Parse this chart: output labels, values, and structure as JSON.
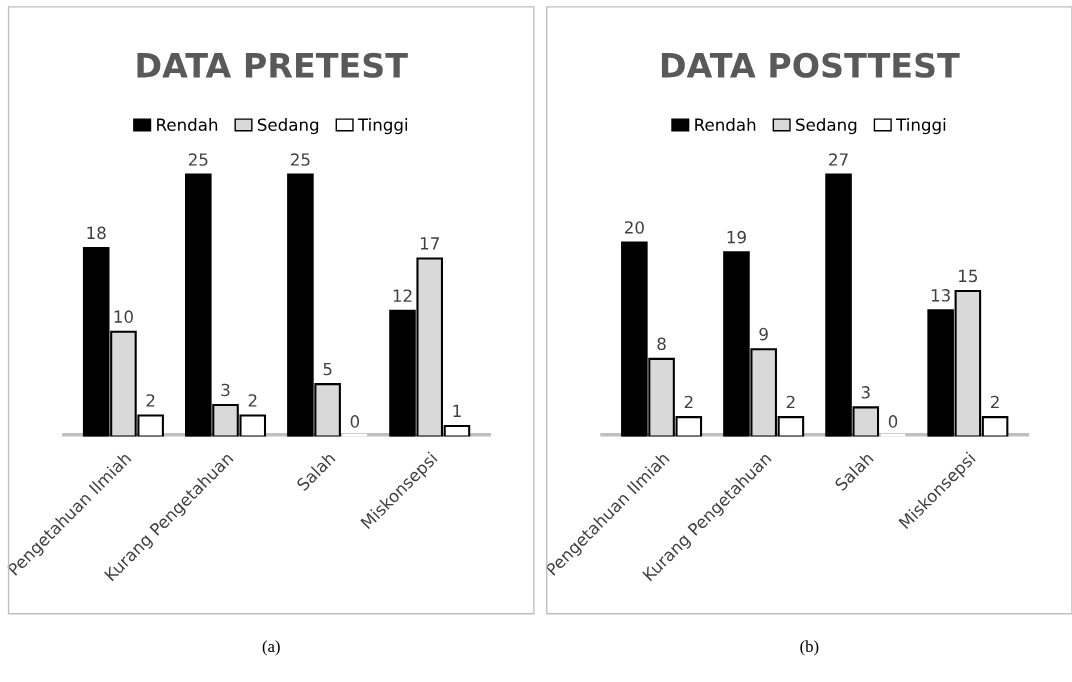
{
  "chart_data": [
    {
      "type": "bar",
      "title": "DATA PRETEST",
      "categories": [
        "Pengetahuan Ilmiah",
        "Kurang Pengetahuan",
        "Salah",
        "Miskonsepsi"
      ],
      "legend": "top",
      "data_labels": true,
      "annotations": [
        "(a)"
      ],
      "series": [
        {
          "name": "Rendah",
          "color": "#000000",
          "values": [
            18,
            25,
            25,
            12
          ]
        },
        {
          "name": "Sedang",
          "color": "#d9d9d9",
          "values": [
            10,
            3,
            5,
            17
          ]
        },
        {
          "name": "Tinggi",
          "color": "#ffffff",
          "values": [
            2,
            2,
            0,
            1
          ]
        }
      ]
    },
    {
      "type": "bar",
      "title": "DATA POSTTEST",
      "categories": [
        "Pengetahuan Ilmiah",
        "Kurang Pengetahuan",
        "Salah",
        "Miskonsepsi"
      ],
      "legend": "top",
      "data_labels": true,
      "annotations": [
        "(b)"
      ],
      "series": [
        {
          "name": "Rendah",
          "color": "#000000",
          "values": [
            20,
            19,
            27,
            13
          ]
        },
        {
          "name": "Sedang",
          "color": "#d9d9d9",
          "values": [
            8,
            9,
            3,
            15
          ]
        },
        {
          "name": "Tinggi",
          "color": "#ffffff",
          "values": [
            2,
            2,
            0,
            2
          ]
        }
      ]
    }
  ]
}
